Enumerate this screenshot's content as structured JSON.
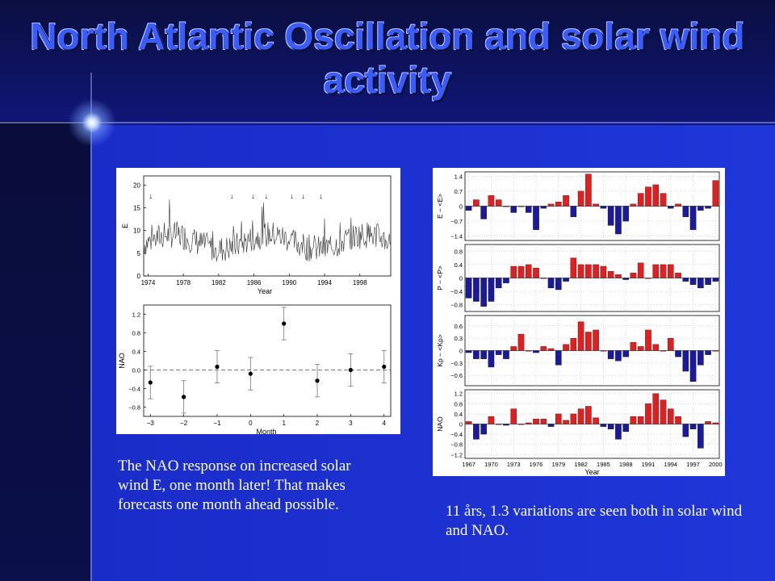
{
  "slide": {
    "title": "North Atlantic Oscillation and solar wind activity",
    "caption_left": "The NAO response on increased solar wind E, one month later! That makes forecasts one month ahead possible.",
    "caption_right": "11 års, 1.3 variations are seen both in solar wind and NAO."
  },
  "colors": {
    "positive": "#e02020",
    "negative": "#1a1a9a",
    "title": "#3a5cff"
  },
  "chart_data": [
    {
      "type": "line",
      "ylabel": "E",
      "xlabel": "Year",
      "xticks": [
        "1974",
        "1978",
        "1982",
        "1986",
        "1990",
        "1994",
        "1998"
      ],
      "yticks": [
        "0",
        "5",
        "10",
        "15",
        "20"
      ],
      "xlim": [
        1973.5,
        2001.5
      ],
      "ylim": [
        0,
        22
      ],
      "annotation_marker": "↓",
      "arrow_years": [
        1974.3,
        1983.5,
        1985.9,
        1987.4,
        1990.3,
        1991.6,
        1993.6
      ],
      "series": [
        {
          "x": "monthly 1973.5-2001.5",
          "values_description_omitted": true
        }
      ]
    },
    {
      "type": "scatter",
      "ylabel": "NAO",
      "xlabel": "Month",
      "x": [
        -3,
        -2,
        -1,
        0,
        1,
        2,
        3,
        4
      ],
      "y": [
        -0.27,
        -0.58,
        0.07,
        -0.08,
        1.0,
        -0.23,
        0.0,
        0.07
      ],
      "err": [
        0.35,
        0.35,
        0.35,
        0.35,
        0.35,
        0.35,
        0.35,
        0.35
      ],
      "xticks": [
        "−3",
        "−2",
        "−1",
        "0",
        "1",
        "2",
        "3",
        "4"
      ],
      "yticks": [
        "−0.8",
        "−0.4",
        "0.0",
        "0.4",
        "0.8",
        "1.2"
      ],
      "xlim": [
        -3.2,
        4.2
      ],
      "ylim": [
        -1.0,
        1.4
      ]
    },
    {
      "type": "bar",
      "ylabel": "E − <E>",
      "x": [
        1967,
        1968,
        1969,
        1970,
        1971,
        1972,
        1973,
        1974,
        1975,
        1976,
        1977,
        1978,
        1979,
        1980,
        1981,
        1982,
        1983,
        1984,
        1985,
        1986,
        1987,
        1988,
        1989,
        1990,
        1991,
        1992,
        1993,
        1994,
        1995,
        1996,
        1997,
        1998,
        1999,
        2000
      ],
      "values": [
        -0.2,
        0.3,
        -0.6,
        0.5,
        0.3,
        0.0,
        -0.3,
        0.0,
        -0.3,
        -1.1,
        -0.1,
        0.1,
        0.2,
        0.5,
        -0.5,
        0.7,
        1.5,
        0.1,
        -0.1,
        -0.9,
        -1.3,
        -0.7,
        0.1,
        0.6,
        0.9,
        1.0,
        0.6,
        -0.1,
        0.1,
        -0.5,
        -1.1,
        -0.2,
        -0.1,
        1.2
      ],
      "yticks": [
        "−1.4",
        "−0.7",
        "0",
        "0.7",
        "1.4"
      ],
      "ylim": [
        -1.6,
        1.6
      ]
    },
    {
      "type": "bar",
      "ylabel": "P − <P>",
      "x": [
        1967,
        1968,
        1969,
        1970,
        1971,
        1972,
        1973,
        1974,
        1975,
        1976,
        1977,
        1978,
        1979,
        1980,
        1981,
        1982,
        1983,
        1984,
        1985,
        1986,
        1987,
        1988,
        1989,
        1990,
        1991,
        1992,
        1993,
        1994,
        1995,
        1996,
        1997,
        1998,
        1999,
        2000
      ],
      "values": [
        -0.6,
        -0.7,
        -0.85,
        -0.7,
        -0.3,
        -0.15,
        0.35,
        0.35,
        0.4,
        0.3,
        0.0,
        -0.3,
        -0.35,
        -0.1,
        0.6,
        0.4,
        0.4,
        0.4,
        0.35,
        0.2,
        0.1,
        -0.05,
        0.15,
        0.45,
        0.0,
        0.4,
        0.4,
        0.4,
        0.15,
        -0.1,
        -0.2,
        -0.3,
        -0.2,
        -0.1
      ],
      "yticks": [
        "−0.8",
        "−0.4",
        "0",
        "0.4",
        "0.8"
      ],
      "ylim": [
        -1.0,
        1.0
      ]
    },
    {
      "type": "bar",
      "ylabel": "Kp − <Kp>",
      "x": [
        1967,
        1968,
        1969,
        1970,
        1971,
        1972,
        1973,
        1974,
        1975,
        1976,
        1977,
        1978,
        1979,
        1980,
        1981,
        1982,
        1983,
        1984,
        1985,
        1986,
        1987,
        1988,
        1989,
        1990,
        1991,
        1992,
        1993,
        1994,
        1995,
        1996,
        1997,
        1998,
        1999,
        2000
      ],
      "values": [
        -0.05,
        -0.2,
        -0.2,
        -0.4,
        -0.1,
        -0.2,
        0.1,
        0.4,
        0.0,
        -0.05,
        0.1,
        0.05,
        -0.35,
        0.15,
        0.3,
        0.7,
        0.45,
        0.5,
        0.0,
        -0.2,
        -0.25,
        -0.15,
        0.2,
        0.1,
        0.5,
        0.15,
        0.0,
        0.3,
        -0.15,
        -0.5,
        -0.75,
        -0.35,
        -0.1,
        0.0
      ],
      "yticks": [
        "−0.6",
        "−0.3",
        "0",
        "0.3",
        "0.6"
      ],
      "ylim": [
        -0.85,
        0.85
      ]
    },
    {
      "type": "bar",
      "ylabel": "NAO",
      "xlabel": "Year",
      "x": [
        1967,
        1968,
        1969,
        1970,
        1971,
        1972,
        1973,
        1974,
        1975,
        1976,
        1977,
        1978,
        1979,
        1980,
        1981,
        1982,
        1983,
        1984,
        1985,
        1986,
        1987,
        1988,
        1989,
        1990,
        1991,
        1992,
        1993,
        1994,
        1995,
        1996,
        1997,
        1998,
        1999,
        2000
      ],
      "values": [
        0.1,
        -0.6,
        -0.4,
        0.3,
        0.0,
        -0.05,
        0.6,
        0.0,
        0.05,
        0.2,
        0.2,
        -0.1,
        0.4,
        0.15,
        0.4,
        0.6,
        0.7,
        0.25,
        -0.1,
        -0.2,
        -0.6,
        -0.3,
        0.3,
        0.3,
        0.8,
        1.2,
        0.95,
        0.6,
        0.3,
        -0.5,
        -0.2,
        -0.95,
        0.1,
        0.05
      ],
      "xticks": [
        "1967",
        "1970",
        "1973",
        "1976",
        "1979",
        "1982",
        "1985",
        "1988",
        "1991",
        "1994",
        "1997",
        "2000"
      ],
      "yticks": [
        "−1.2",
        "−0.8",
        "−0.4",
        "0",
        "0.4",
        "0.8",
        "1.2"
      ],
      "ylim": [
        -1.35,
        1.35
      ]
    }
  ]
}
